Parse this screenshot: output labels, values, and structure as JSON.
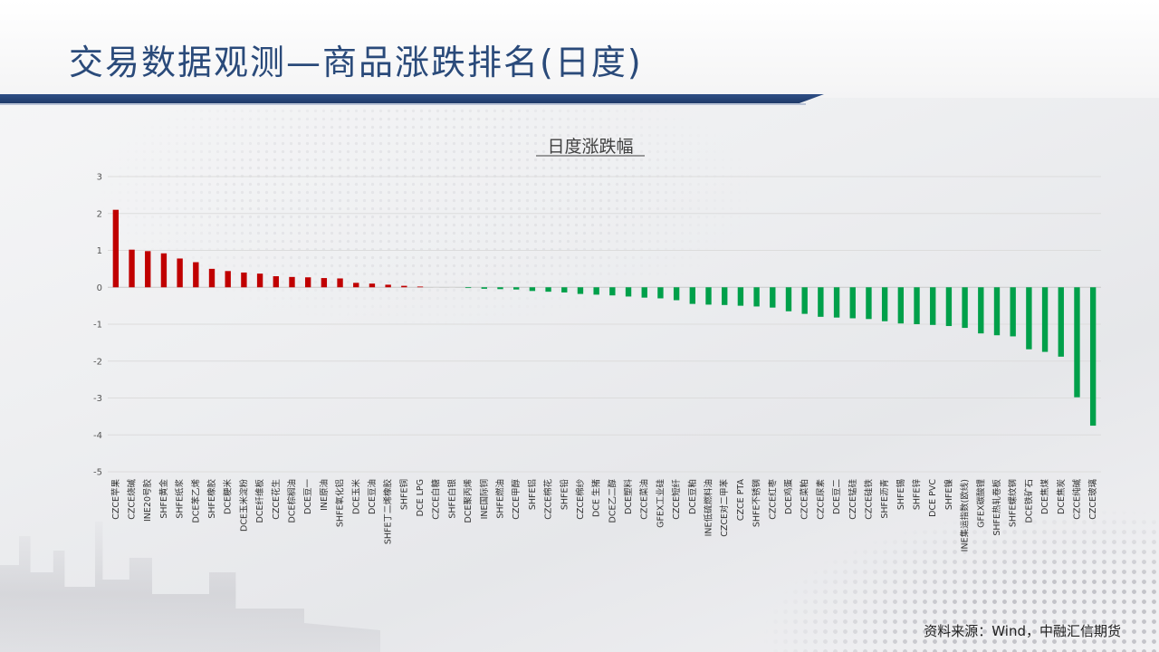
{
  "slide": {
    "title": "交易数据观测—商品涨跌排名(日度)",
    "source": "资料来源：Wind，中融汇信期货"
  },
  "colors": {
    "positive": "#c00000",
    "negative": "#00a04a",
    "title": "#2a4a7a",
    "header_band": "#1f3a68"
  },
  "chart_data": {
    "type": "bar",
    "title": "日度涨跌幅",
    "xlabel": "",
    "ylabel": "",
    "ylim": [
      -5,
      3
    ],
    "yticks": [
      3,
      2,
      1,
      0,
      -1,
      -2,
      -3,
      -4,
      -5
    ],
    "grid": true,
    "legend": "none",
    "categories": [
      "CZCE苹果",
      "CZCE烧碱",
      "INE20号胶",
      "SHFE黄金",
      "SHFE纸浆",
      "DCE苯乙烯",
      "SHFE橡胶",
      "DCE粳米",
      "DCE玉米淀粉",
      "DCE纤维板",
      "CZCE花生",
      "DCE棕榈油",
      "DCE豆一",
      "INE原油",
      "SHFE氧化铝",
      "DCE玉米",
      "DCE豆油",
      "SHFE丁二烯橡胶",
      "SHFE铜",
      "DCE LPG",
      "CZCE白糖",
      "SHFE白银",
      "DCE聚丙烯",
      "INE国际铜",
      "SHFE燃油",
      "CZCE甲醇",
      "SHFE铝",
      "CZCE棉花",
      "SHFE铅",
      "CZCE棉纱",
      "DCE 生猪",
      "DCE乙二醇",
      "DCE塑料",
      "CZCE菜油",
      "GFEX工业硅",
      "CZCE短纤",
      "DCE豆粕",
      "INE低硫燃料油",
      "CZCE对二甲苯",
      "CZCE PTA",
      "SHFE不锈钢",
      "CZCE红枣",
      "DCE鸡蛋",
      "CZCE菜粕",
      "CZCE尿素",
      "DCE豆二",
      "CZCE锰硅",
      "CZCE硅铁",
      "SHFE沥青",
      "SHFE锡",
      "SHFE锌",
      "DCE PVC",
      "SHFE镍",
      "INE集运指数(欧线)",
      "GFEX碳酸锂",
      "SHFE热轧卷板",
      "SHFE螺纹钢",
      "DCE铁矿石",
      "DCE焦煤",
      "DCE焦炭",
      "CZCE纯碱",
      "CZCE玻璃"
    ],
    "values": [
      2.1,
      1.02,
      0.98,
      0.92,
      0.78,
      0.68,
      0.5,
      0.44,
      0.4,
      0.37,
      0.3,
      0.28,
      0.27,
      0.25,
      0.24,
      0.12,
      0.1,
      0.07,
      0.04,
      0.02,
      0.0,
      0.0,
      -0.02,
      -0.04,
      -0.05,
      -0.06,
      -0.1,
      -0.12,
      -0.14,
      -0.18,
      -0.2,
      -0.22,
      -0.25,
      -0.28,
      -0.3,
      -0.35,
      -0.45,
      -0.47,
      -0.48,
      -0.5,
      -0.52,
      -0.55,
      -0.65,
      -0.72,
      -0.8,
      -0.82,
      -0.84,
      -0.86,
      -0.92,
      -0.98,
      -1.0,
      -1.02,
      -1.05,
      -1.1,
      -1.25,
      -1.3,
      -1.33,
      -1.68,
      -1.75,
      -1.88,
      -2.98,
      -3.75
    ]
  }
}
